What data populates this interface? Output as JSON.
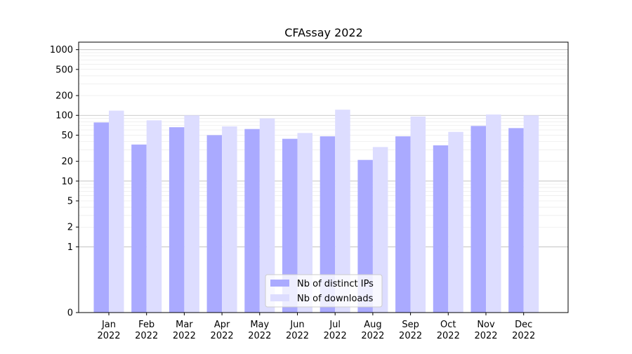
{
  "chart_data": {
    "type": "bar",
    "title": "CFAssay 2022",
    "xlabel": "",
    "ylabel": "",
    "yscale": "symlog",
    "ylim": [
      0,
      1300
    ],
    "yticks": [
      0,
      1,
      2,
      5,
      10,
      20,
      50,
      100,
      200,
      500,
      1000
    ],
    "categories": [
      "Jan\n2022",
      "Feb\n2022",
      "Mar\n2022",
      "Apr\n2022",
      "May\n2022",
      "Jun\n2022",
      "Jul\n2022",
      "Aug\n2022",
      "Sep\n2022",
      "Oct\n2022",
      "Nov\n2022",
      "Dec\n2022"
    ],
    "series": [
      {
        "name": "Nb of distinct IPs",
        "color": "#aaaaff",
        "values": [
          78,
          36,
          66,
          50,
          62,
          44,
          48,
          21,
          48,
          35,
          69,
          64
        ]
      },
      {
        "name": "Nb of downloads",
        "color": "#ddddff",
        "values": [
          118,
          84,
          100,
          68,
          90,
          54,
          122,
          33,
          96,
          56,
          103,
          100
        ]
      }
    ],
    "grid": true,
    "legend_position": "lower center"
  }
}
